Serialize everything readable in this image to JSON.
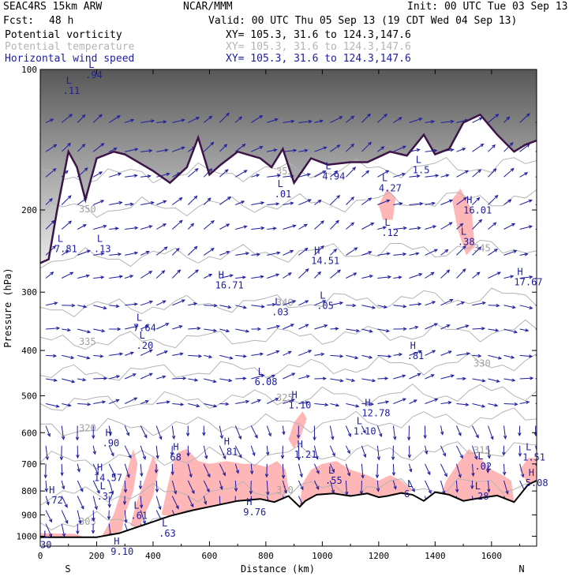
{
  "header": {
    "model": "SEAC4RS 15km ARW",
    "org": "NCAR/MMM",
    "init": "Init: 00 UTC Tue 03 Sep 13",
    "fcst_label": "Fcst:",
    "fcst_value": "48 h",
    "valid": "Valid: 00 UTC Thu 05 Sep 13 (19 CDT Wed 04 Sep 13)"
  },
  "fields": [
    {
      "name": "Potential vorticity",
      "xy": "XY= 105.3, 31.6 to 124.3,147.6",
      "color": "#000000"
    },
    {
      "name": "Potential temperature",
      "xy": "XY= 105.3, 31.6 to 124.3,147.6",
      "color": "#b4b4b4"
    },
    {
      "name": "Horizontal wind speed",
      "xy": "XY= 105.3, 31.6 to 124.3,147.6",
      "color": "#1c1ca0"
    }
  ],
  "axes": {
    "ylabel": "Pressure (hPa)",
    "xlabel": "Distance (km)",
    "left_end": "S",
    "right_end": "N"
  },
  "colors": {
    "pv_fill": "#ffb6b6",
    "tropopause": "#3c1448",
    "wind": "#1c1ca0",
    "theta": "#b4b4b4",
    "terrain": "#000000"
  },
  "chart_data": {
    "type": "cross-section",
    "xlim": [
      0,
      1760
    ],
    "ylim": [
      1050,
      100
    ],
    "yscale": "log",
    "xticks": [
      "0",
      "200",
      "400",
      "600",
      "800",
      "1000",
      "1200",
      "1400",
      "1600"
    ],
    "yticks": [
      "100",
      "200",
      "300",
      "400",
      "500",
      "600",
      "700",
      "800",
      "900",
      "1000"
    ],
    "theta_isentropes": [
      {
        "label": "305",
        "p": 935
      },
      {
        "label": "310",
        "p": 820
      },
      {
        "label": "315",
        "p": 690
      },
      {
        "label": "320",
        "p": 590
      },
      {
        "label": "325",
        "p": 520
      },
      {
        "label": "330",
        "p": 450
      },
      {
        "label": "335",
        "p": 385
      },
      {
        "label": "340",
        "p": 325
      },
      {
        "label": "345",
        "p": 255
      },
      {
        "label": "350",
        "p": 200
      },
      {
        "label": "355",
        "p": 170
      }
    ],
    "terrain": [
      [
        0,
        1005
      ],
      [
        200,
        1005
      ],
      [
        280,
        985
      ],
      [
        380,
        940
      ],
      [
        460,
        905
      ],
      [
        540,
        880
      ],
      [
        620,
        860
      ],
      [
        700,
        840
      ],
      [
        780,
        832
      ],
      [
        830,
        845
      ],
      [
        860,
        830
      ],
      [
        880,
        820
      ],
      [
        920,
        865
      ],
      [
        940,
        840
      ],
      [
        980,
        815
      ],
      [
        1040,
        810
      ],
      [
        1100,
        820
      ],
      [
        1160,
        810
      ],
      [
        1200,
        825
      ],
      [
        1230,
        820
      ],
      [
        1280,
        808
      ],
      [
        1320,
        815
      ],
      [
        1360,
        840
      ],
      [
        1400,
        805
      ],
      [
        1450,
        815
      ],
      [
        1500,
        840
      ],
      [
        1560,
        828
      ],
      [
        1620,
        818
      ],
      [
        1680,
        845
      ],
      [
        1730,
        775
      ],
      [
        1760,
        760
      ]
    ],
    "tropopause": [
      [
        0,
        260
      ],
      [
        30,
        255
      ],
      [
        60,
        200
      ],
      [
        100,
        150
      ],
      [
        130,
        162
      ],
      [
        160,
        190
      ],
      [
        200,
        155
      ],
      [
        260,
        150
      ],
      [
        300,
        152
      ],
      [
        400,
        165
      ],
      [
        460,
        175
      ],
      [
        520,
        162
      ],
      [
        560,
        140
      ],
      [
        600,
        168
      ],
      [
        640,
        160
      ],
      [
        700,
        150
      ],
      [
        780,
        155
      ],
      [
        820,
        162
      ],
      [
        860,
        148
      ],
      [
        900,
        175
      ],
      [
        960,
        155
      ],
      [
        1020,
        160
      ],
      [
        1100,
        158
      ],
      [
        1160,
        158
      ],
      [
        1240,
        150
      ],
      [
        1300,
        153
      ],
      [
        1360,
        138
      ],
      [
        1400,
        152
      ],
      [
        1450,
        148
      ],
      [
        1500,
        130
      ],
      [
        1560,
        125
      ],
      [
        1620,
        138
      ],
      [
        1680,
        150
      ],
      [
        1720,
        145
      ],
      [
        1760,
        142
      ]
    ],
    "pv_regions": [
      [
        [
          220,
          995
        ],
        [
          260,
          900
        ],
        [
          290,
          790
        ],
        [
          310,
          720
        ],
        [
          330,
          650
        ],
        [
          345,
          700
        ],
        [
          330,
          800
        ],
        [
          300,
          900
        ],
        [
          290,
          970
        ],
        [
          260,
          1000
        ]
      ],
      [
        [
          320,
          950
        ],
        [
          340,
          850
        ],
        [
          370,
          760
        ],
        [
          390,
          700
        ],
        [
          400,
          670
        ],
        [
          420,
          720
        ],
        [
          400,
          820
        ],
        [
          370,
          900
        ],
        [
          350,
          960
        ]
      ],
      [
        [
          0,
          1005
        ],
        [
          0,
          985
        ],
        [
          120,
          988
        ],
        [
          160,
          1005
        ]
      ],
      [
        [
          430,
          900
        ],
        [
          450,
          790
        ],
        [
          470,
          700
        ],
        [
          490,
          660
        ],
        [
          520,
          650
        ],
        [
          560,
          690
        ],
        [
          600,
          700
        ],
        [
          660,
          690
        ],
        [
          720,
          700
        ],
        [
          760,
          700
        ],
        [
          800,
          710
        ],
        [
          840,
          690
        ],
        [
          870,
          720
        ],
        [
          880,
          790
        ],
        [
          860,
          830
        ],
        [
          820,
          845
        ],
        [
          780,
          832
        ],
        [
          700,
          840
        ],
        [
          620,
          860
        ],
        [
          540,
          880
        ],
        [
          460,
          905
        ]
      ],
      [
        [
          920,
          860
        ],
        [
          930,
          770
        ],
        [
          960,
          720
        ],
        [
          1000,
          700
        ],
        [
          1050,
          690
        ],
        [
          1100,
          720
        ],
        [
          1160,
          740
        ],
        [
          1200,
          760
        ],
        [
          1240,
          740
        ],
        [
          1280,
          760
        ],
        [
          1320,
          800
        ],
        [
          1280,
          808
        ],
        [
          1230,
          820
        ],
        [
          1200,
          825
        ],
        [
          1160,
          810
        ],
        [
          1100,
          820
        ],
        [
          1040,
          810
        ],
        [
          980,
          815
        ],
        [
          940,
          840
        ]
      ],
      [
        [
          1420,
          820
        ],
        [
          1440,
          760
        ],
        [
          1480,
          700
        ],
        [
          1520,
          650
        ],
        [
          1560,
          680
        ],
        [
          1600,
          720
        ],
        [
          1640,
          740
        ],
        [
          1670,
          760
        ],
        [
          1680,
          845
        ],
        [
          1620,
          818
        ],
        [
          1560,
          828
        ],
        [
          1500,
          840
        ],
        [
          1450,
          815
        ]
      ],
      [
        [
          1700,
          720
        ],
        [
          1730,
          680
        ],
        [
          1760,
          680
        ],
        [
          1760,
          760
        ],
        [
          1730,
          775
        ]
      ],
      [
        [
          880,
          620
        ],
        [
          900,
          570
        ],
        [
          930,
          540
        ],
        [
          945,
          560
        ],
        [
          920,
          620
        ],
        [
          900,
          650
        ]
      ],
      [
        [
          1200,
          195
        ],
        [
          1230,
          180
        ],
        [
          1260,
          188
        ],
        [
          1250,
          210
        ],
        [
          1215,
          210
        ]
      ],
      [
        [
          1460,
          190
        ],
        [
          1490,
          180
        ],
        [
          1530,
          200
        ],
        [
          1540,
          240
        ],
        [
          1510,
          250
        ],
        [
          1480,
          220
        ]
      ]
    ],
    "extrema": [
      {
        "t": "L",
        "v": ".11",
        "x": 80,
        "p": 108
      },
      {
        "t": "L",
        "v": ".94",
        "x": 160,
        "p": 100
      },
      {
        "t": "L",
        "v": "4.94",
        "x": 1000,
        "p": 165
      },
      {
        "t": "L",
        "v": ".01",
        "x": 830,
        "p": 180
      },
      {
        "t": "L",
        "v": "4.27",
        "x": 1200,
        "p": 175
      },
      {
        "t": "L",
        "v": "1.5",
        "x": 1320,
        "p": 160
      },
      {
        "t": "H",
        "v": "16.01",
        "x": 1500,
        "p": 195
      },
      {
        "t": "L",
        "v": ".12",
        "x": 1210,
        "p": 218
      },
      {
        "t": "L",
        "v": ".38",
        "x": 1480,
        "p": 228
      },
      {
        "t": "L",
        "v": "7.81",
        "x": 50,
        "p": 236
      },
      {
        "t": "L",
        "v": ".13",
        "x": 190,
        "p": 236
      },
      {
        "t": "H",
        "v": "14.51",
        "x": 960,
        "p": 250
      },
      {
        "t": "H",
        "v": "16.71",
        "x": 620,
        "p": 282
      },
      {
        "t": "H",
        "v": "17.67",
        "x": 1680,
        "p": 278
      },
      {
        "t": "L",
        "v": ".03",
        "x": 820,
        "p": 322
      },
      {
        "t": "L",
        "v": ".05",
        "x": 980,
        "p": 312
      },
      {
        "t": "L",
        "v": "7.64",
        "x": 330,
        "p": 348
      },
      {
        "t": "L",
        "v": ".20",
        "x": 340,
        "p": 380
      },
      {
        "t": "H",
        "v": ".81",
        "x": 1300,
        "p": 400
      },
      {
        "t": "L",
        "v": "6.08",
        "x": 760,
        "p": 455
      },
      {
        "t": "H",
        "v": "1.10",
        "x": 880,
        "p": 510
      },
      {
        "t": "H",
        "v": "12.78",
        "x": 1140,
        "p": 530
      },
      {
        "t": "L",
        "v": "1.10",
        "x": 1110,
        "p": 580
      },
      {
        "t": "H",
        "v": ".90",
        "x": 220,
        "p": 615
      },
      {
        "t": "H",
        "v": ".81",
        "x": 640,
        "p": 642
      },
      {
        "t": "H",
        "v": "68",
        "x": 460,
        "p": 660
      },
      {
        "t": "H",
        "v": "1.21",
        "x": 900,
        "p": 650
      },
      {
        "t": "L",
        "v": "1.51",
        "x": 1710,
        "p": 660
      },
      {
        "t": "L",
        "v": ".02",
        "x": 1540,
        "p": 690
      },
      {
        "t": "H",
        "v": "14.57",
        "x": 190,
        "p": 730
      },
      {
        "t": "L",
        "v": ".55",
        "x": 1010,
        "p": 740
      },
      {
        "t": "H",
        "v": "5.08",
        "x": 1720,
        "p": 748
      },
      {
        "t": "H",
        "v": ".72",
        "x": 20,
        "p": 815
      },
      {
        "t": "L",
        "v": ".37",
        "x": 200,
        "p": 800
      },
      {
        "t": "L",
        "v": "6",
        "x": 1290,
        "p": 790
      },
      {
        "t": "L",
        "v": ".28",
        "x": 1530,
        "p": 800
      },
      {
        "t": "L",
        "v": ".61",
        "x": 320,
        "p": 880
      },
      {
        "t": "H",
        "v": "9.76",
        "x": 720,
        "p": 865
      },
      {
        "t": "L",
        "v": ".63",
        "x": 420,
        "p": 960
      },
      {
        "t": "L",
        "v": "30",
        "x": 0,
        "p": 1015
      },
      {
        "t": "H",
        "v": "9.10",
        "x": 250,
        "p": 1050
      }
    ]
  }
}
